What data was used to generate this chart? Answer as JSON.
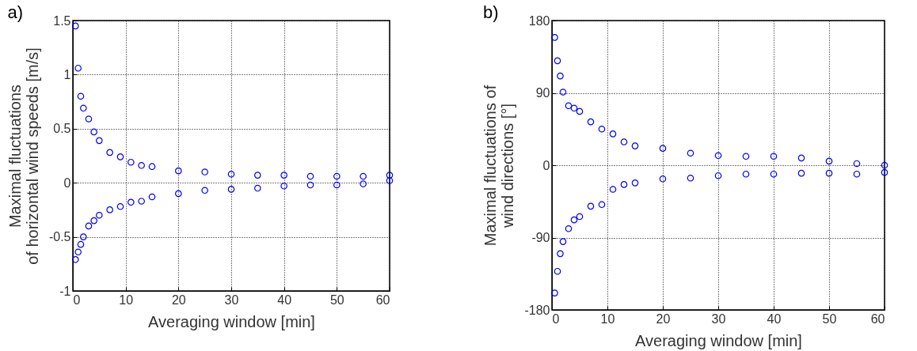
{
  "chart_data": [
    {
      "type": "scatter",
      "title": "a)",
      "xlabel": "Averaging window [min]",
      "ylabel": "Maximal fluctuations\nof horizontal wind speeds [m/s]",
      "x": [
        0.5,
        1,
        1.5,
        2,
        3,
        4,
        5,
        7,
        9,
        11,
        13,
        15,
        20,
        25,
        30,
        35,
        40,
        45,
        50,
        55,
        60
      ],
      "series": [
        {
          "color": "#0000ff",
          "values": [
            1.45,
            1.06,
            0.8,
            0.69,
            0.59,
            0.47,
            0.39,
            0.28,
            0.24,
            0.19,
            0.16,
            0.15,
            0.11,
            0.1,
            0.08,
            0.07,
            0.07,
            0.06,
            0.06,
            0.06,
            0.07
          ]
        },
        {
          "color": "#0000ff",
          "values": [
            -0.71,
            -0.64,
            -0.57,
            -0.5,
            -0.4,
            -0.35,
            -0.3,
            -0.25,
            -0.22,
            -0.18,
            -0.17,
            -0.13,
            -0.1,
            -0.07,
            -0.06,
            -0.05,
            -0.03,
            -0.02,
            -0.02,
            -0.01,
            0.02
          ]
        }
      ],
      "xlim": [
        0,
        60
      ],
      "xticks": [
        0,
        10,
        20,
        30,
        40,
        50,
        60
      ],
      "ylim": [
        -1,
        1.5
      ],
      "yticks": [
        -1,
        -0.5,
        0,
        0.5,
        1,
        1.5
      ],
      "grid": true,
      "marker": "circle"
    },
    {
      "type": "scatter",
      "title": "b)",
      "xlabel": "Averaging window [min]",
      "ylabel": "Maximal fluctuations of\nwind directions [°]",
      "x": [
        0.5,
        1,
        1.5,
        2,
        3,
        4,
        5,
        7,
        9,
        11,
        13,
        15,
        20,
        25,
        30,
        35,
        40,
        45,
        50,
        55,
        60
      ],
      "series": [
        {
          "color": "#0000ff",
          "values": [
            159,
            130,
            111,
            91,
            74,
            71,
            67,
            54,
            45,
            39,
            29,
            24,
            21,
            15,
            12,
            11,
            11,
            9,
            5,
            2,
            0
          ]
        },
        {
          "color": "#0000ff",
          "values": [
            -159,
            -132,
            -110,
            -95,
            -79,
            -68,
            -64,
            -51,
            -49,
            -30,
            -24,
            -22,
            -17,
            -16,
            -13,
            -11,
            -11,
            -10,
            -10,
            -11,
            -9
          ]
        }
      ],
      "xlim": [
        0,
        60
      ],
      "xticks": [
        0,
        10,
        20,
        30,
        40,
        50,
        60
      ],
      "ylim": [
        -180,
        180
      ],
      "yticks": [
        -180,
        -90,
        0,
        90,
        180
      ],
      "grid": true,
      "marker": "circle"
    }
  ]
}
